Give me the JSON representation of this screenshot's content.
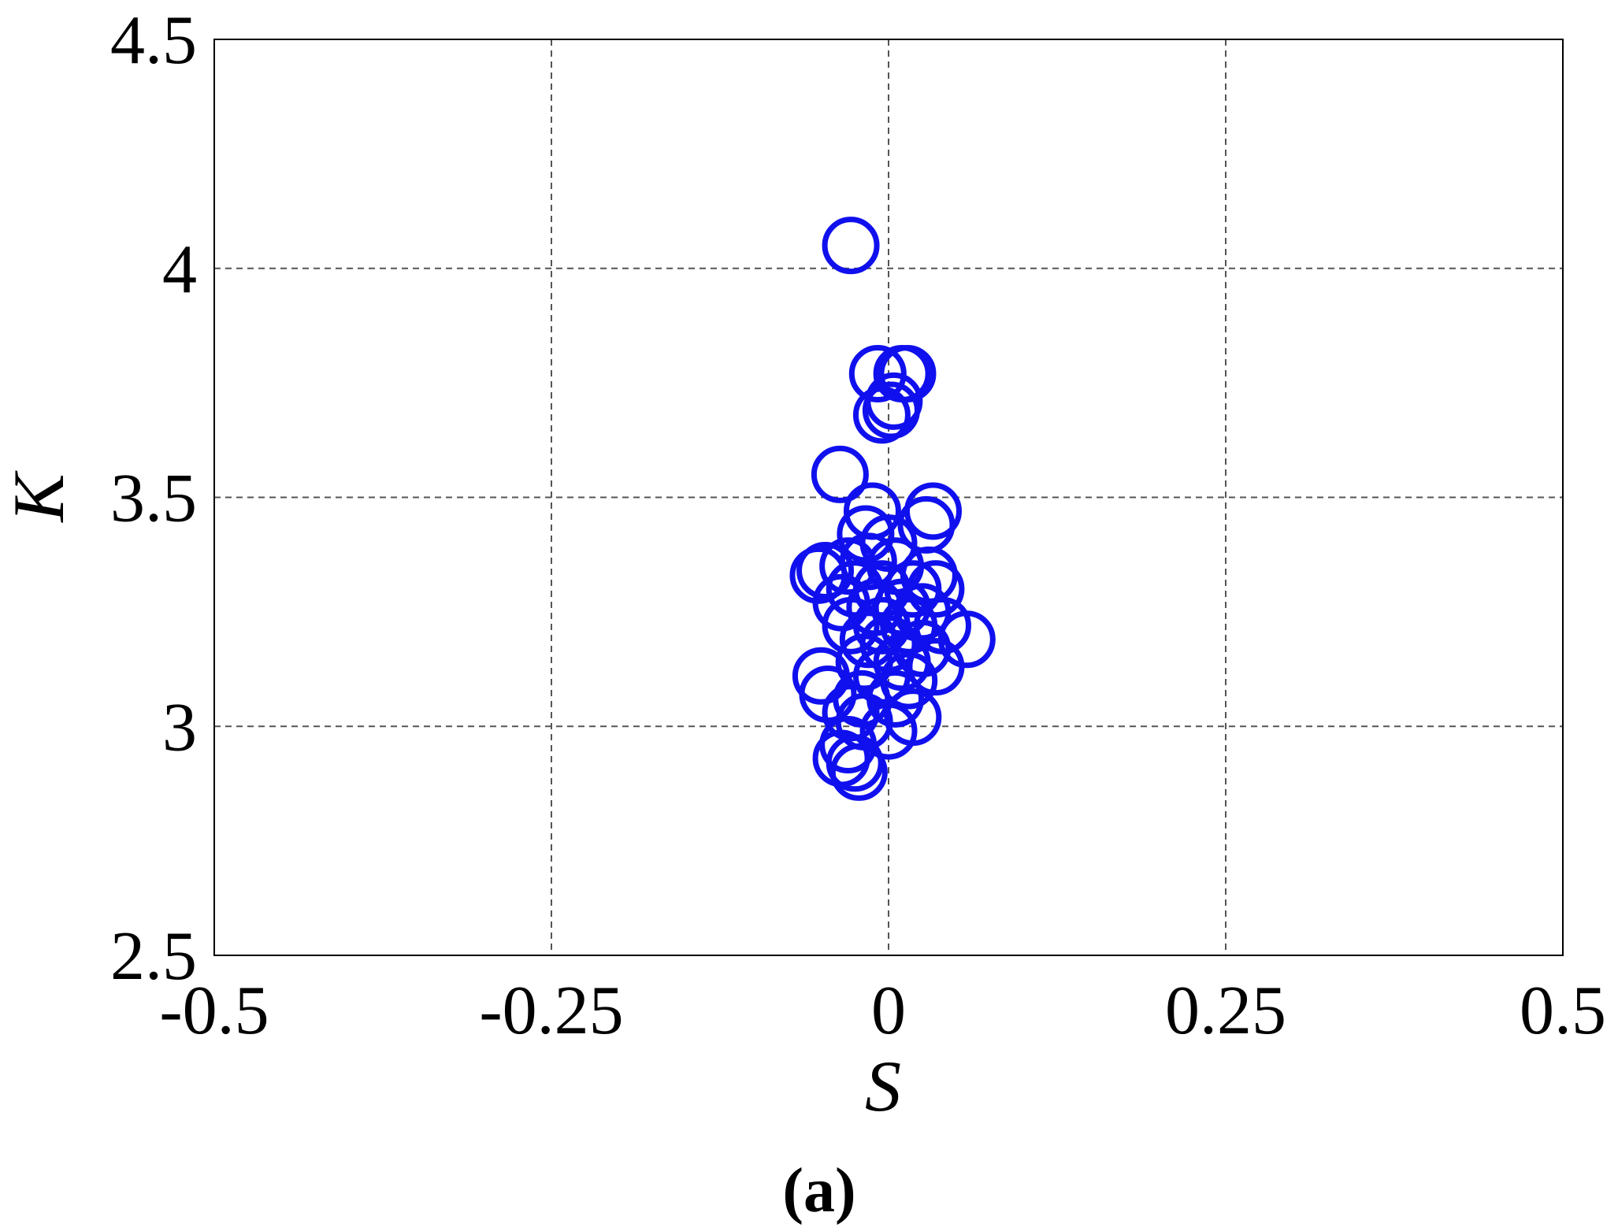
{
  "chart_data": {
    "type": "scatter",
    "xlabel": "S",
    "ylabel": "K",
    "panel_label": "(a)",
    "xlim": [
      -0.5,
      0.5
    ],
    "ylim": [
      2.5,
      4.5
    ],
    "x_ticks": [
      -0.5,
      -0.25,
      0,
      0.25,
      0.5
    ],
    "x_tick_labels": [
      "-0.5",
      "-0.25",
      "0",
      "0.25",
      "0.5"
    ],
    "y_ticks": [
      2.5,
      3,
      3.5,
      4,
      4.5
    ],
    "y_tick_labels": [
      "2.5",
      "3",
      "3.5",
      "4",
      "4.5"
    ],
    "grid": true,
    "marker": "open-circle",
    "marker_color": "#1010ee",
    "series": [
      {
        "points": [
          [
            -0.028,
            4.05
          ],
          [
            -0.008,
            3.77
          ],
          [
            0.01,
            3.77
          ],
          [
            0.014,
            3.77
          ],
          [
            0.004,
            3.71
          ],
          [
            0.002,
            3.69
          ],
          [
            -0.005,
            3.68
          ],
          [
            -0.036,
            3.55
          ],
          [
            0.033,
            3.47
          ],
          [
            -0.012,
            3.47
          ],
          [
            0.028,
            3.44
          ],
          [
            -0.017,
            3.42
          ],
          [
            0.0,
            3.4
          ],
          [
            -0.047,
            3.34
          ],
          [
            -0.052,
            3.33
          ],
          [
            -0.03,
            3.35
          ],
          [
            -0.015,
            3.36
          ],
          [
            0.005,
            3.35
          ],
          [
            0.03,
            3.33
          ],
          [
            -0.025,
            3.3
          ],
          [
            -0.005,
            3.3
          ],
          [
            0.018,
            3.3
          ],
          [
            0.035,
            3.3
          ],
          [
            -0.035,
            3.27
          ],
          [
            -0.01,
            3.26
          ],
          [
            0.01,
            3.26
          ],
          [
            0.025,
            3.25
          ],
          [
            -0.028,
            3.22
          ],
          [
            -0.005,
            3.22
          ],
          [
            0.015,
            3.22
          ],
          [
            0.04,
            3.22
          ],
          [
            0.058,
            3.19
          ],
          [
            -0.015,
            3.19
          ],
          [
            0.0,
            3.18
          ],
          [
            0.025,
            3.17
          ],
          [
            -0.018,
            3.14
          ],
          [
            0.01,
            3.14
          ],
          [
            0.035,
            3.13
          ],
          [
            -0.05,
            3.11
          ],
          [
            -0.005,
            3.11
          ],
          [
            0.015,
            3.1
          ],
          [
            -0.045,
            3.07
          ],
          [
            -0.02,
            3.06
          ],
          [
            0.005,
            3.06
          ],
          [
            -0.028,
            3.03
          ],
          [
            0.018,
            3.02
          ],
          [
            -0.018,
            3.01
          ],
          [
            0.0,
            2.99
          ],
          [
            -0.03,
            2.96
          ],
          [
            -0.035,
            2.93
          ],
          [
            -0.025,
            2.92
          ],
          [
            -0.022,
            2.9
          ]
        ]
      }
    ]
  }
}
